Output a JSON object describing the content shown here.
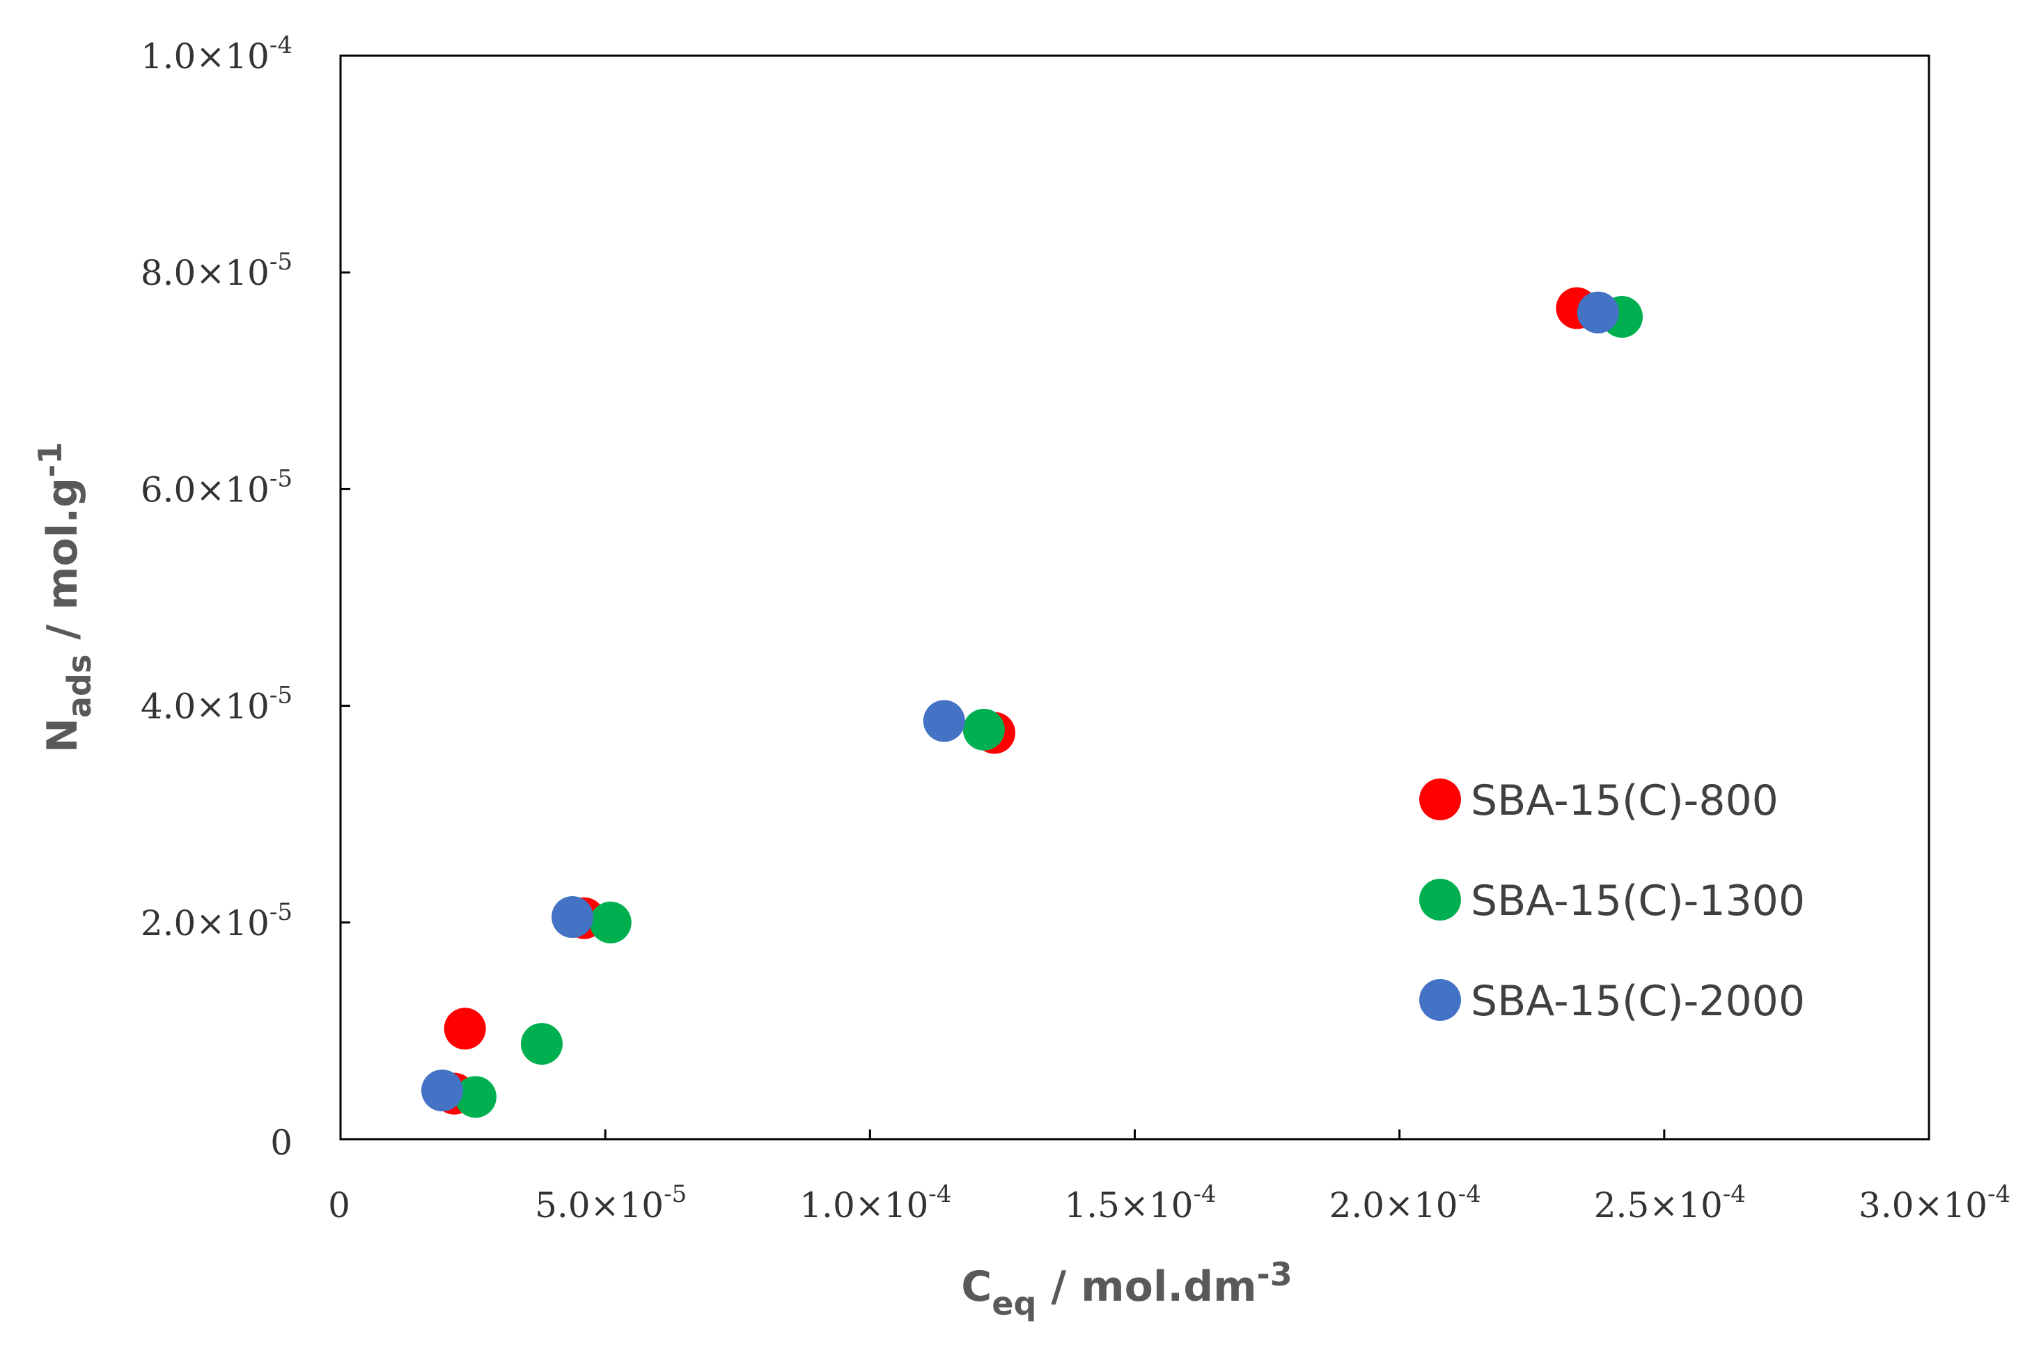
{
  "chart_data": {
    "type": "scatter",
    "title": "",
    "xlabel": {
      "main": "C",
      "sub": "eq",
      "rest": " / mol.dm",
      "sup": "-3"
    },
    "ylabel": {
      "main": "N",
      "sub": "ads",
      "rest": " / mol.g",
      "sup": "-1"
    },
    "xlim": [
      0,
      0.0003
    ],
    "ylim": [
      0,
      0.0001
    ],
    "x_ticks": [
      {
        "value": 0,
        "mantissa": "0",
        "exp": ""
      },
      {
        "value": 5e-05,
        "mantissa": "5.0×10",
        "exp": "-5"
      },
      {
        "value": 0.0001,
        "mantissa": "1.0×10",
        "exp": "-4"
      },
      {
        "value": 0.00015,
        "mantissa": "1.5×10",
        "exp": "-4"
      },
      {
        "value": 0.0002,
        "mantissa": "2.0×10",
        "exp": "-4"
      },
      {
        "value": 0.00025,
        "mantissa": "2.5×10",
        "exp": "-4"
      },
      {
        "value": 0.0003,
        "mantissa": "3.0×10",
        "exp": "-4"
      }
    ],
    "y_ticks": [
      {
        "value": 0,
        "mantissa": "0",
        "exp": ""
      },
      {
        "value": 2e-05,
        "mantissa": "2.0×10",
        "exp": "-5"
      },
      {
        "value": 4e-05,
        "mantissa": "4.0×10",
        "exp": "-5"
      },
      {
        "value": 6e-05,
        "mantissa": "6.0×10",
        "exp": "-5"
      },
      {
        "value": 8e-05,
        "mantissa": "8.0×10",
        "exp": "-5"
      },
      {
        "value": 0.0001,
        "mantissa": "1.0×10",
        "exp": "-4"
      }
    ],
    "grid": false,
    "legend_position": "right-middle",
    "series": [
      {
        "name": "SBA-15(C)-800",
        "color": "#ff0000",
        "points": [
          {
            "x": 2.15e-05,
            "y": 4.2e-06
          },
          {
            "x": 2.35e-05,
            "y": 1.02e-05
          },
          {
            "x": 4.6e-05,
            "y": 2.04e-05
          },
          {
            "x": 0.0001235,
            "y": 3.75e-05
          },
          {
            "x": 0.0002335,
            "y": 7.67e-05
          }
        ]
      },
      {
        "name": "SBA-15(C)-1300",
        "color": "#00b050",
        "points": [
          {
            "x": 2.55e-05,
            "y": 3.9e-06
          },
          {
            "x": 3.8e-05,
            "y": 8.8e-06
          },
          {
            "x": 5.1e-05,
            "y": 2e-05
          },
          {
            "x": 0.0001215,
            "y": 3.78e-05
          },
          {
            "x": 0.000242,
            "y": 7.59e-05
          }
        ]
      },
      {
        "name": "SBA-15(C)-2000",
        "color": "#4472c4",
        "points": [
          {
            "x": 1.92e-05,
            "y": 4.5e-06
          },
          {
            "x": 4.38e-05,
            "y": 2.05e-05
          },
          {
            "x": 0.000114,
            "y": 3.86e-05
          },
          {
            "x": 0.0002375,
            "y": 7.63e-05
          }
        ]
      }
    ]
  }
}
